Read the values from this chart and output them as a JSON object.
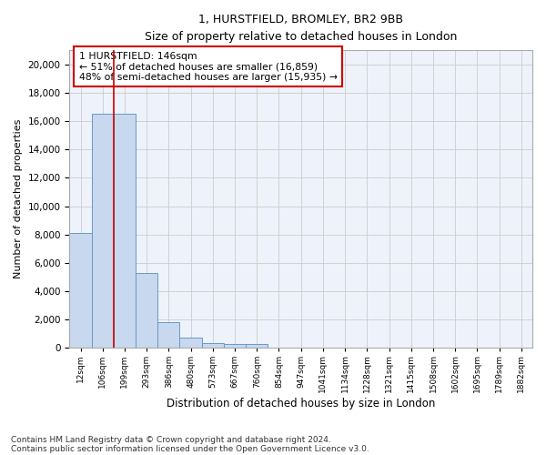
{
  "title_line1": "1, HURSTFIELD, BROMLEY, BR2 9BB",
  "title_line2": "Size of property relative to detached houses in London",
  "xlabel": "Distribution of detached houses by size in London",
  "ylabel": "Number of detached properties",
  "categories": [
    "12sqm",
    "106sqm",
    "199sqm",
    "293sqm",
    "386sqm",
    "480sqm",
    "573sqm",
    "667sqm",
    "760sqm",
    "854sqm",
    "947sqm",
    "1041sqm",
    "1134sqm",
    "1228sqm",
    "1321sqm",
    "1415sqm",
    "1508sqm",
    "1602sqm",
    "1695sqm",
    "1789sqm",
    "1882sqm"
  ],
  "values": [
    8100,
    16500,
    16500,
    5300,
    1800,
    750,
    350,
    280,
    280,
    0,
    0,
    0,
    0,
    0,
    0,
    0,
    0,
    0,
    0,
    0,
    0
  ],
  "bar_color": "#c8d8ee",
  "bar_edge_color": "#6699cc",
  "grid_color": "#cccccc",
  "background_color": "#eef2fa",
  "annotation_text": "1 HURSTFIELD: 146sqm\n← 51% of detached houses are smaller (16,859)\n48% of semi-detached houses are larger (15,935) →",
  "annotation_box_color": "#ffffff",
  "annotation_border_color": "#cc0000",
  "red_line_x": 1.5,
  "ylim": [
    0,
    21000
  ],
  "yticks": [
    0,
    2000,
    4000,
    6000,
    8000,
    10000,
    12000,
    14000,
    16000,
    18000,
    20000
  ],
  "footnote1": "Contains HM Land Registry data © Crown copyright and database right 2024.",
  "footnote2": "Contains public sector information licensed under the Open Government Licence v3.0."
}
